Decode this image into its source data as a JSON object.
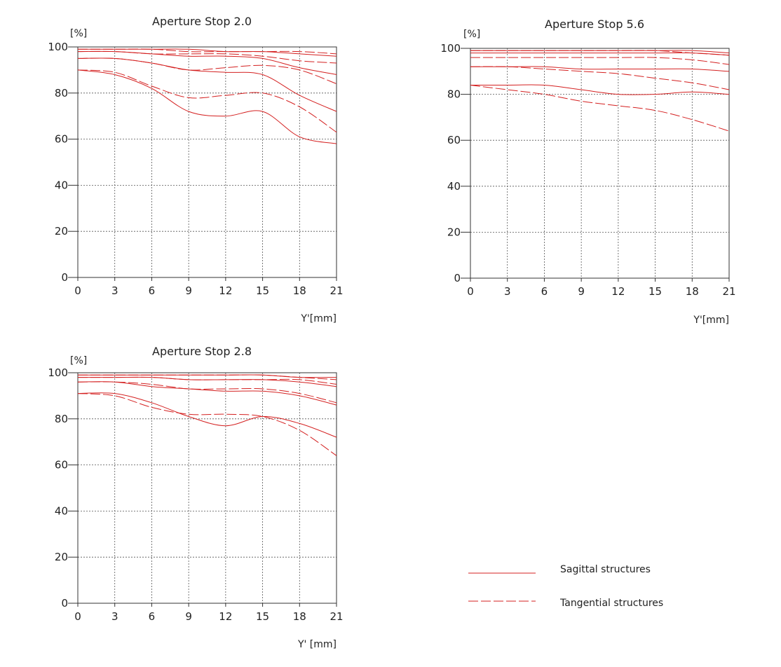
{
  "legend": {
    "sagittal": "Sagittal structures",
    "tangential": "Tangential structures",
    "color": "#d42020"
  },
  "chart_data": [
    {
      "type": "line",
      "title": "Aperture Stop 2.0",
      "ylabel": "[%]",
      "xlabel": "Y'[mm]",
      "xlim": [
        0,
        21
      ],
      "ylim": [
        0,
        100
      ],
      "x_ticks": [
        "0",
        "3",
        "6",
        "9",
        "12",
        "15",
        "18",
        "21"
      ],
      "y_ticks": [
        "0",
        "20",
        "40",
        "60",
        "80",
        "100"
      ],
      "grid": true,
      "x": [
        0,
        3,
        6,
        9,
        12,
        15,
        18,
        21
      ],
      "series": [
        {
          "style": "sagittal",
          "values": [
            99,
            99,
            99,
            99,
            98,
            98,
            97,
            96
          ]
        },
        {
          "style": "tangential",
          "values": [
            99,
            99,
            99,
            98,
            98,
            98,
            98,
            97
          ]
        },
        {
          "style": "sagittal",
          "values": [
            98,
            98,
            97,
            96,
            96,
            95,
            91,
            88
          ]
        },
        {
          "style": "tangential",
          "values": [
            98,
            98,
            97,
            97,
            97,
            96,
            94,
            93
          ]
        },
        {
          "style": "sagittal",
          "values": [
            95,
            95,
            93,
            90,
            89,
            88,
            79,
            72
          ]
        },
        {
          "style": "tangential",
          "values": [
            95,
            95,
            93,
            90,
            91,
            92,
            90,
            84
          ]
        },
        {
          "style": "sagittal",
          "values": [
            90,
            88,
            82,
            72,
            70,
            72,
            61,
            58
          ]
        },
        {
          "style": "tangential",
          "values": [
            90,
            89,
            83,
            78,
            79,
            80,
            74,
            63
          ]
        }
      ]
    },
    {
      "type": "line",
      "title": "Aperture Stop 5.6",
      "ylabel": "[%]",
      "xlabel": "Y'[mm]",
      "xlim": [
        0,
        21
      ],
      "ylim": [
        0,
        100
      ],
      "x_ticks": [
        "0",
        "3",
        "6",
        "9",
        "12",
        "15",
        "18",
        "21"
      ],
      "y_ticks": [
        "0",
        "20",
        "40",
        "60",
        "80",
        "100"
      ],
      "grid": true,
      "x": [
        0,
        3,
        6,
        9,
        12,
        15,
        18,
        21
      ],
      "series": [
        {
          "style": "sagittal",
          "values": [
            99,
            99,
            99,
            99,
            99,
            99,
            99,
            98
          ]
        },
        {
          "style": "tangential",
          "values": [
            99,
            99,
            99,
            99,
            99,
            99,
            98,
            97
          ]
        },
        {
          "style": "sagittal",
          "values": [
            98,
            98,
            98,
            98,
            98,
            98,
            98,
            97
          ]
        },
        {
          "style": "tangential",
          "values": [
            96,
            96,
            96,
            96,
            96,
            96,
            95,
            93
          ]
        },
        {
          "style": "sagittal",
          "values": [
            92,
            92,
            92,
            91,
            91,
            91,
            91,
            90
          ]
        },
        {
          "style": "tangential",
          "values": [
            92,
            92,
            91,
            90,
            89,
            87,
            85,
            82
          ]
        },
        {
          "style": "sagittal",
          "values": [
            84,
            84,
            84,
            82,
            80,
            80,
            81,
            80
          ]
        },
        {
          "style": "tangential",
          "values": [
            84,
            82,
            80,
            77,
            75,
            73,
            69,
            64
          ]
        }
      ]
    },
    {
      "type": "line",
      "title": "Aperture Stop 2.8",
      "ylabel": "[%]",
      "xlabel": "Y' [mm]",
      "xlim": [
        0,
        21
      ],
      "ylim": [
        0,
        100
      ],
      "x_ticks": [
        "0",
        "3",
        "6",
        "9",
        "12",
        "15",
        "18",
        "21"
      ],
      "y_ticks": [
        "0",
        "20",
        "40",
        "60",
        "80",
        "100"
      ],
      "grid": true,
      "x": [
        0,
        3,
        6,
        9,
        12,
        15,
        18,
        21
      ],
      "series": [
        {
          "style": "sagittal",
          "values": [
            99,
            99,
            99,
            99,
            99,
            99,
            98,
            98
          ]
        },
        {
          "style": "tangential",
          "values": [
            99,
            99,
            99,
            99,
            99,
            99,
            98,
            97
          ]
        },
        {
          "style": "sagittal",
          "values": [
            98,
            98,
            98,
            97,
            97,
            97,
            96,
            94
          ]
        },
        {
          "style": "tangential",
          "values": [
            98,
            98,
            98,
            97,
            97,
            97,
            97,
            95
          ]
        },
        {
          "style": "sagittal",
          "values": [
            96,
            96,
            94,
            93,
            92,
            92,
            90,
            86
          ]
        },
        {
          "style": "tangential",
          "values": [
            96,
            96,
            95,
            93,
            93,
            93,
            91,
            87
          ]
        },
        {
          "style": "sagittal",
          "values": [
            91,
            91,
            87,
            81,
            77,
            81,
            78,
            72
          ]
        },
        {
          "style": "tangential",
          "values": [
            91,
            90,
            85,
            82,
            82,
            81,
            75,
            64
          ]
        }
      ]
    }
  ]
}
